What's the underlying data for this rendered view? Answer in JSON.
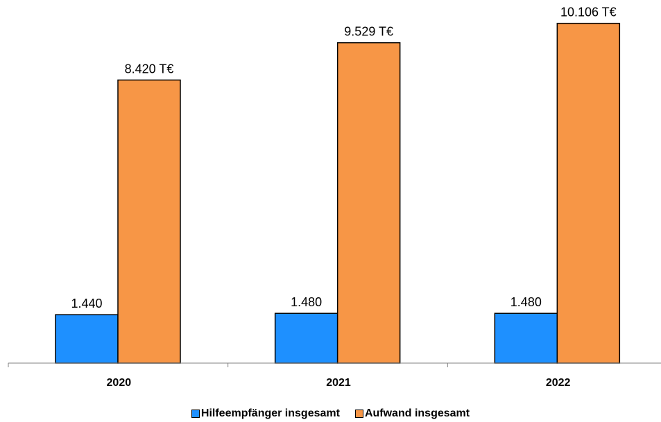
{
  "chart_data": {
    "type": "bar",
    "categories": [
      "2020",
      "2021",
      "2022"
    ],
    "series": [
      {
        "name": "Hilfeempfänger insgesamt",
        "color": "#1e90ff",
        "values": [
          1440,
          1480,
          1480
        ],
        "labels": [
          "1.440",
          "1.480",
          "1.480"
        ]
      },
      {
        "name": "Aufwand insgesamt",
        "color": "#f79646",
        "values": [
          8420,
          9529,
          10106
        ],
        "labels": [
          "8.420 T€",
          "9.529 T€",
          "10.106 T€"
        ]
      }
    ],
    "title": "",
    "xlabel": "",
    "ylabel": "",
    "ylim": [
      0,
      10800
    ],
    "grid": false,
    "legend_position": "bottom"
  }
}
